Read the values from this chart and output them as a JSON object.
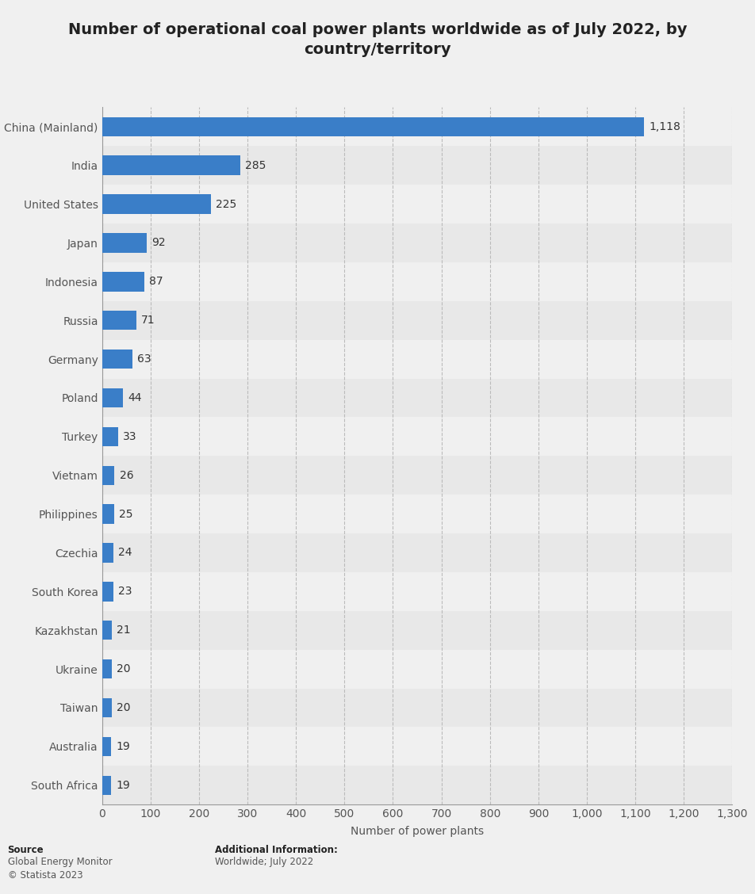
{
  "title": "Number of operational coal power plants worldwide as of July 2022, by\ncountry/territory",
  "categories": [
    "South Africa",
    "Australia",
    "Taiwan",
    "Ukraine",
    "Kazakhstan",
    "South Korea",
    "Czechia",
    "Philippines",
    "Vietnam",
    "Turkey",
    "Poland",
    "Germany",
    "Russia",
    "Indonesia",
    "Japan",
    "United States",
    "India",
    "China (Mainland)"
  ],
  "values": [
    19,
    19,
    20,
    20,
    21,
    23,
    24,
    25,
    26,
    33,
    44,
    63,
    71,
    87,
    92,
    225,
    285,
    1118
  ],
  "bar_color": "#3a7ec8",
  "background_color": "#f0f0f0",
  "plot_background_color": "#f0f0f0",
  "xlabel": "Number of power plants",
  "xlim": [
    0,
    1300
  ],
  "xticks": [
    0,
    100,
    200,
    300,
    400,
    500,
    600,
    700,
    800,
    900,
    1000,
    1100,
    1200,
    1300
  ],
  "xtick_labels": [
    "0",
    "100",
    "200",
    "300",
    "400",
    "500",
    "600",
    "700",
    "800",
    "900",
    "1,000",
    "1,100",
    "1,200",
    "1,300"
  ],
  "title_fontsize": 14,
  "axis_label_fontsize": 10,
  "tick_fontsize": 10,
  "value_fontsize": 10,
  "source_bold": "Source",
  "source_normal": "Global Energy Monitor\n© Statista 2023",
  "additional_bold": "Additional Information:",
  "additional_normal": "Worldwide; July 2022",
  "row_colors": [
    "#e8e8e8",
    "#f0f0f0"
  ]
}
